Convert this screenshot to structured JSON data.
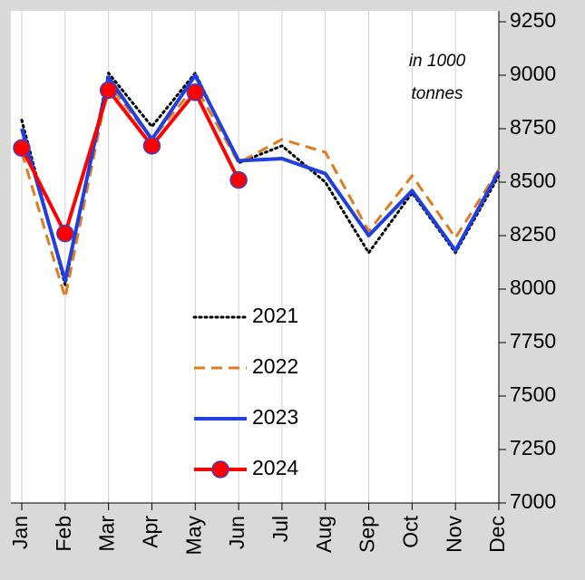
{
  "chart_data": {
    "type": "line",
    "annotation": [
      "in 1000",
      "tonnes"
    ],
    "categories": [
      "Jan",
      "Feb",
      "Mar",
      "Apr",
      "May",
      "Jun",
      "Jul",
      "Aug",
      "Sep",
      "Oct",
      "Nov",
      "Dec"
    ],
    "series": [
      {
        "name": "2021",
        "color": "#000000",
        "line_style": "dotted",
        "values": [
          8790,
          8020,
          9010,
          8760,
          9010,
          8590,
          8670,
          8500,
          8170,
          8450,
          8170,
          8530
        ]
      },
      {
        "name": "2022",
        "color": "#e07b1f",
        "line_style": "dashed",
        "values": [
          8640,
          7960,
          8960,
          8700,
          8950,
          8590,
          8700,
          8640,
          8270,
          8530,
          8240,
          8560
        ]
      },
      {
        "name": "2023",
        "color": "#1f3fe0",
        "line_style": "solid",
        "values": [
          8750,
          8040,
          8990,
          8700,
          9000,
          8600,
          8610,
          8540,
          8250,
          8460,
          8180,
          8550
        ]
      },
      {
        "name": "2024",
        "color": "#ff0000",
        "line_style": "solid",
        "marker": true,
        "values": [
          8660,
          8260,
          8930,
          8670,
          8920,
          8510,
          null,
          null,
          null,
          null,
          null,
          null
        ]
      }
    ],
    "ylim": [
      7000,
      9250
    ],
    "yticks": [
      7000,
      7250,
      7500,
      7750,
      8000,
      8250,
      8500,
      8750,
      9000,
      9250
    ],
    "y_axis_side": "right",
    "grid": "vertical"
  }
}
